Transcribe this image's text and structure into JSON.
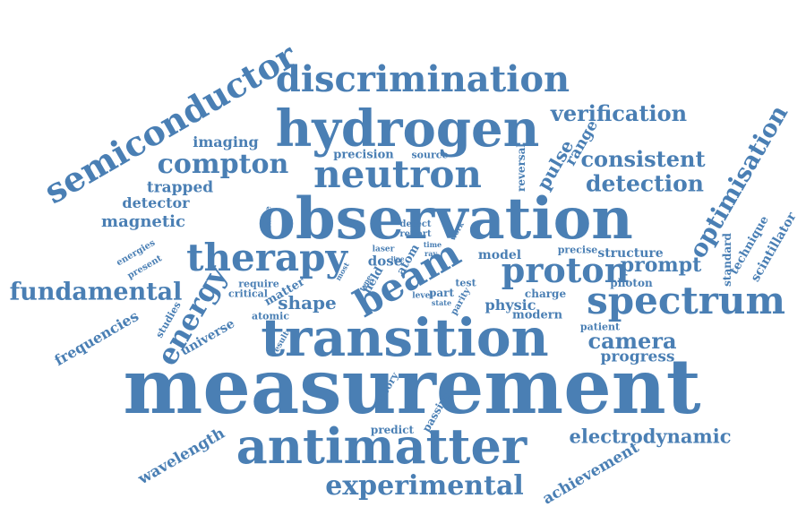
{
  "color": "#4a7fb4",
  "words": [
    "measurement",
    "observation",
    "transition",
    "antimatter",
    "hydrogen",
    "semiconductor",
    "discrimination",
    "neutron",
    "therapy",
    "beam",
    "spectrum",
    "proton",
    "optimisation",
    "experimental",
    "compton",
    "fundamental",
    "energy",
    "verification",
    "detection",
    "consistent",
    "camera",
    "electrodynamic",
    "achievement",
    "wavelength",
    "frequencies",
    "prompt",
    "progress",
    "shape",
    "imaging",
    "trapped",
    "detector",
    "magnetic",
    "pulse",
    "range",
    "technique",
    "scintillator",
    "standard",
    "structure",
    "photon",
    "charge",
    "modern",
    "patient",
    "physic",
    "model",
    "universe",
    "precision",
    "source",
    "reversal",
    "energies",
    "present",
    "studies",
    "atomic",
    "critical",
    "require",
    "matter",
    "dose",
    "field",
    "atom",
    "detect",
    "report",
    "laser",
    "time",
    "ray",
    "work",
    "test",
    "part",
    "level",
    "state",
    "parity",
    "theory",
    "passive",
    "predict",
    "result",
    "enable",
    "most",
    "type",
    "line",
    "precise"
  ]
}
